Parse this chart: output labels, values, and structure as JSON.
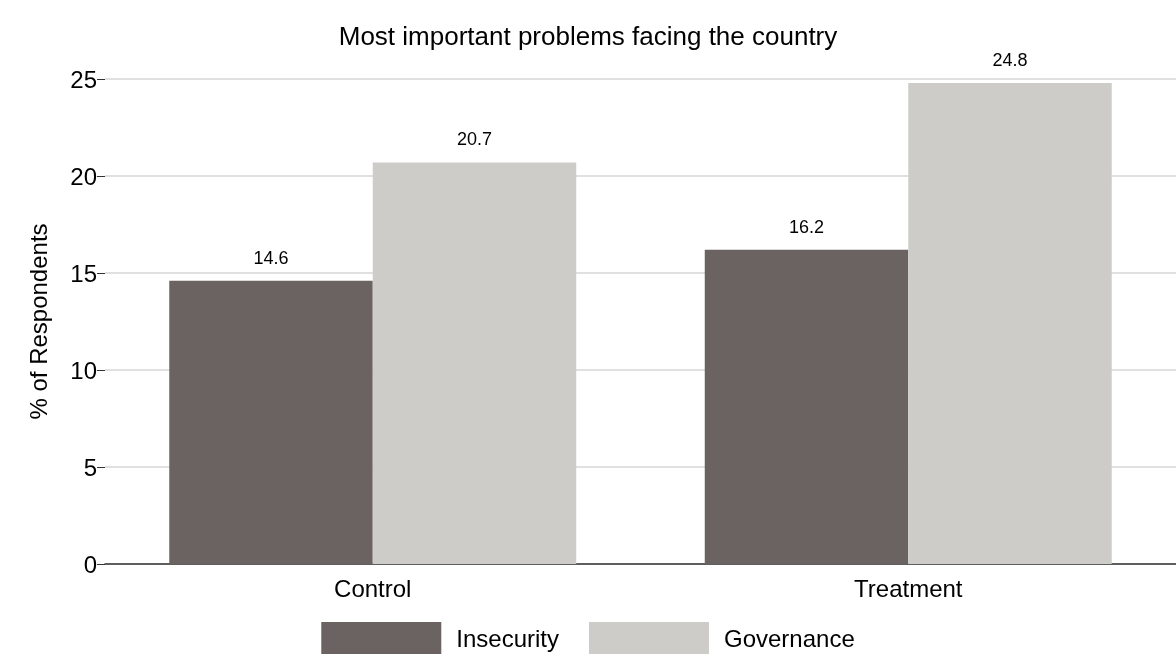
{
  "chart_data": {
    "type": "bar",
    "title": "Most important problems facing the country",
    "ylabel": "% of Respondents",
    "categories": [
      "Control",
      "Treatment"
    ],
    "series": [
      {
        "name": "Insecurity",
        "color": "#6b6361",
        "values": [
          14.6,
          16.2
        ]
      },
      {
        "name": "Governance",
        "color": "#cdccc8",
        "values": [
          20.7,
          24.8
        ]
      }
    ],
    "ylim": [
      0,
      25
    ],
    "yticks": [
      0,
      5,
      10,
      15,
      20,
      25
    ],
    "grid": "y",
    "legend": "bottom",
    "data_labels": true
  }
}
